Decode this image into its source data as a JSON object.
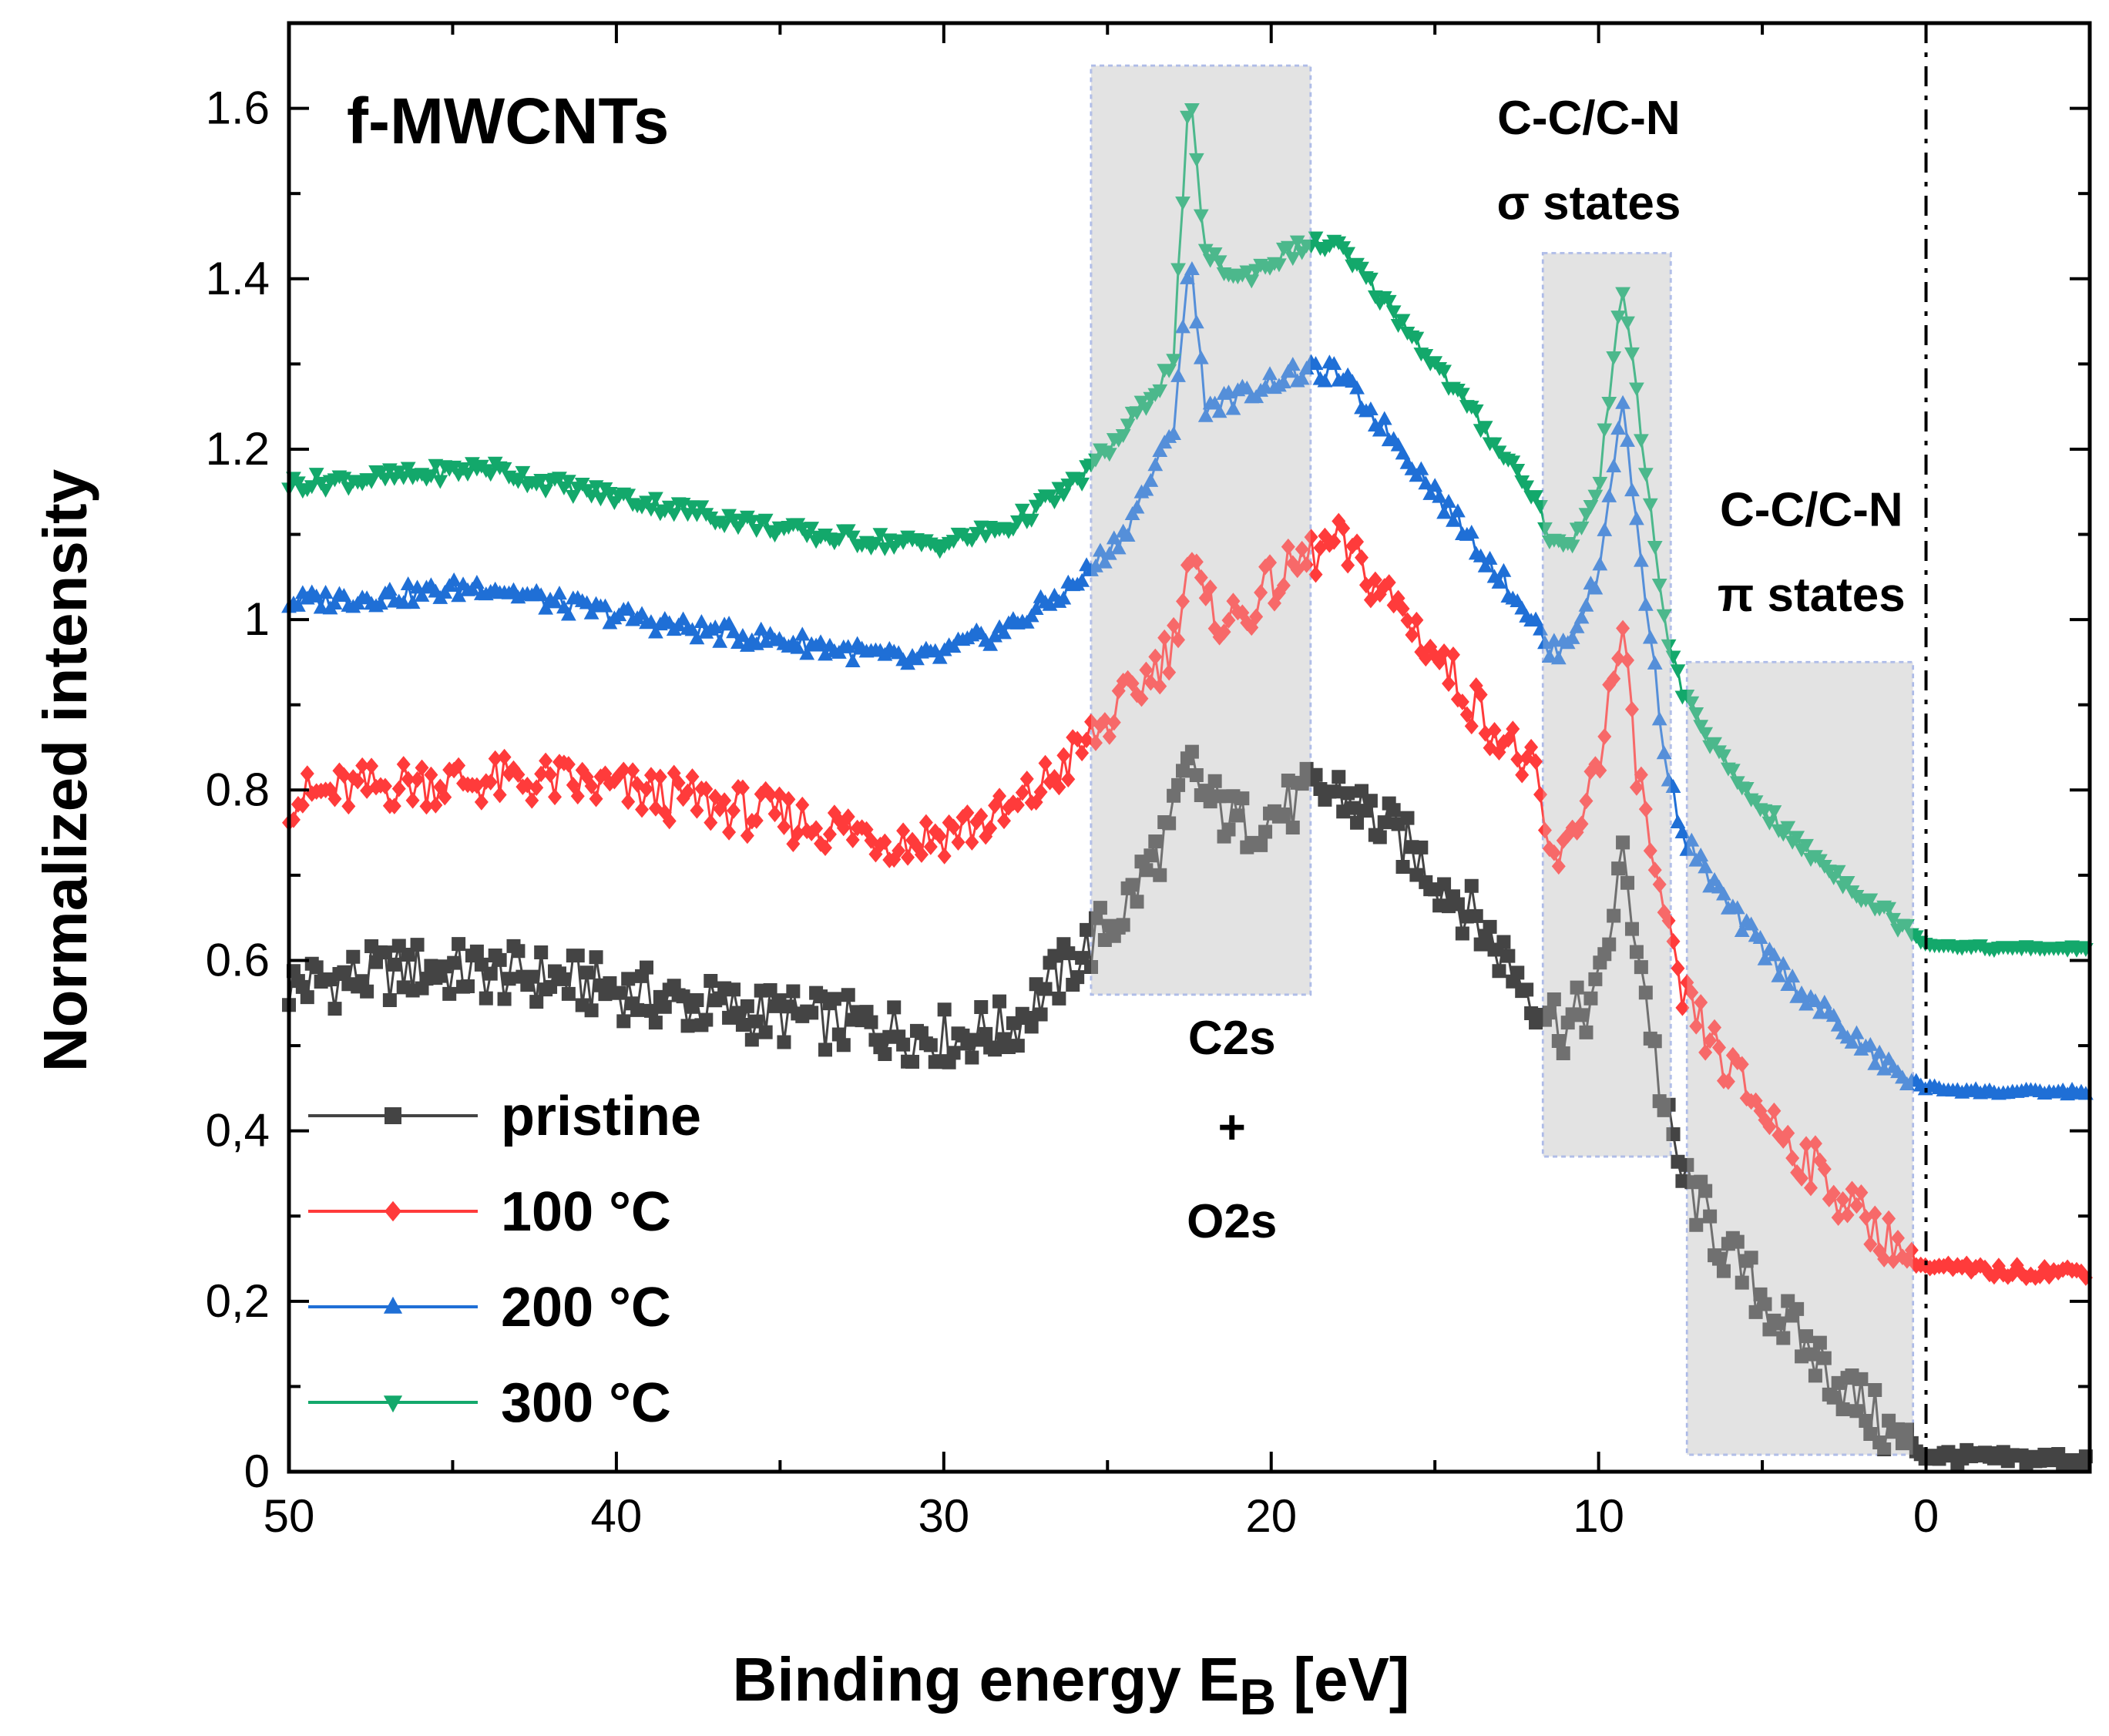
{
  "chart_data": {
    "type": "line",
    "title": "f-MWCNTs",
    "xlabel": "Binding energy E",
    "xlabel_sub": "B",
    "xlabel_unit": " [eV]",
    "ylabel": "Normalized intensity",
    "xlim": [
      50,
      -5
    ],
    "ylim": [
      0,
      1.7
    ],
    "x_ticks": [
      50,
      40,
      30,
      20,
      10,
      0
    ],
    "x_tick_labels": [
      "50",
      "40",
      "30",
      "20",
      "10",
      "0"
    ],
    "y_ticks": [
      0,
      0.2,
      0.4,
      0.6,
      0.8,
      1.0,
      1.2,
      1.4,
      1.6
    ],
    "y_tick_labels": [
      "0",
      "0,2",
      "0,4",
      "0.6",
      "0.8",
      "1",
      "1.2",
      "1.4",
      "1.6"
    ],
    "fermi_line_x": 0,
    "regions": [
      {
        "name": "c2s-o2s",
        "x0": 25.5,
        "x1": 18.8,
        "y0": 0.56,
        "y1": 1.65
      },
      {
        "name": "sigma-states",
        "x0": 11.7,
        "x1": 7.8,
        "y0": 0.37,
        "y1": 1.43
      },
      {
        "name": "pi-states",
        "x0": 7.3,
        "x1": 0.4,
        "y0": 0.02,
        "y1": 0.95
      }
    ],
    "annotations": [
      {
        "name": "c2s",
        "text": "C2s",
        "x": 21.2,
        "y": 0.49
      },
      {
        "name": "plus",
        "text": "+",
        "x": 21.2,
        "y": 0.385
      },
      {
        "name": "o2s",
        "text": "O2s",
        "x": 21.2,
        "y": 0.275
      },
      {
        "name": "sigma-line1",
        "text": "C-C/C-N",
        "x": 10.3,
        "y": 1.57
      },
      {
        "name": "sigma-line2",
        "text": "σ states",
        "x": 10.3,
        "y": 1.47
      },
      {
        "name": "pi-line1",
        "text": "C-C/C-N",
        "x": 3.5,
        "y": 1.11
      },
      {
        "name": "pi-line2",
        "text": "π states",
        "x": 3.5,
        "y": 1.01
      }
    ],
    "series": [
      {
        "name": "pristine",
        "color": "#444444",
        "marker": "square",
        "noise": 0.035,
        "x": [
          50,
          46,
          42,
          38,
          34,
          30,
          28,
          26,
          24.5,
          23,
          22.5,
          22,
          21,
          20,
          19,
          18,
          16,
          14,
          12,
          11,
          10,
          9.3,
          8.8,
          8,
          7.5,
          6,
          4,
          2,
          1,
          0,
          -2,
          -5
        ],
        "values": [
          0.57,
          0.59,
          0.58,
          0.55,
          0.53,
          0.51,
          0.52,
          0.6,
          0.66,
          0.76,
          0.83,
          0.79,
          0.76,
          0.77,
          0.79,
          0.8,
          0.74,
          0.66,
          0.56,
          0.52,
          0.56,
          0.72,
          0.62,
          0.42,
          0.35,
          0.25,
          0.16,
          0.08,
          0.04,
          0.02,
          0.015,
          0.015
        ]
      },
      {
        "name": "100 °C",
        "color": "#ff3b3b",
        "marker": "diamond",
        "noise": 0.03,
        "x": [
          50,
          46,
          42,
          38,
          34,
          31,
          30,
          28,
          26,
          24.5,
          23,
          22.5,
          22,
          21,
          20,
          19,
          18,
          16,
          14,
          12,
          11.5,
          11,
          10,
          9.3,
          8.8,
          8,
          7.5,
          6,
          4,
          2,
          1,
          0,
          -2,
          -5
        ],
        "values": [
          0.79,
          0.81,
          0.81,
          0.79,
          0.76,
          0.74,
          0.75,
          0.77,
          0.84,
          0.9,
          0.97,
          1.08,
          1.01,
          1.0,
          1.04,
          1.07,
          1.09,
          1.01,
          0.91,
          0.82,
          0.72,
          0.72,
          0.84,
          0.98,
          0.82,
          0.64,
          0.56,
          0.47,
          0.38,
          0.3,
          0.27,
          0.24,
          0.235,
          0.235
        ]
      },
      {
        "name": "200 °C",
        "color": "#1f6fd6",
        "marker": "triangle-up",
        "noise": 0.012,
        "x": [
          50,
          46,
          44,
          42,
          38,
          34,
          31,
          30,
          28,
          26,
          24.5,
          23,
          22.5,
          22,
          21,
          20,
          19,
          18,
          16,
          14,
          12,
          11.5,
          11,
          10,
          9.3,
          8.8,
          8,
          7.5,
          6,
          4,
          2,
          1,
          0,
          -2,
          -5
        ],
        "values": [
          1.02,
          1.03,
          1.04,
          1.02,
          0.99,
          0.97,
          0.95,
          0.96,
          0.99,
          1.04,
          1.1,
          1.22,
          1.43,
          1.25,
          1.26,
          1.28,
          1.29,
          1.29,
          1.2,
          1.1,
          1.0,
          0.96,
          0.97,
          1.05,
          1.26,
          1.1,
          0.85,
          0.75,
          0.66,
          0.57,
          0.5,
          0.47,
          0.45,
          0.445,
          0.445
        ]
      },
      {
        "name": "300 °C",
        "color": "#13a86b",
        "marker": "triangle-down",
        "noise": 0.01,
        "x": [
          50,
          46,
          44,
          42,
          38,
          34,
          31,
          30,
          28,
          26,
          24.5,
          23,
          22.5,
          22,
          21,
          20,
          19,
          18,
          16,
          14,
          12,
          11.5,
          11,
          10,
          9.3,
          8.8,
          8,
          7.5,
          6,
          4,
          2,
          1,
          0,
          -2,
          -5
        ],
        "values": [
          1.16,
          1.17,
          1.18,
          1.16,
          1.13,
          1.1,
          1.09,
          1.09,
          1.11,
          1.16,
          1.22,
          1.3,
          1.62,
          1.43,
          1.4,
          1.42,
          1.44,
          1.44,
          1.35,
          1.25,
          1.15,
          1.1,
          1.08,
          1.15,
          1.4,
          1.25,
          1.0,
          0.92,
          0.82,
          0.74,
          0.68,
          0.65,
          0.62,
          0.615,
          0.615
        ]
      }
    ]
  }
}
